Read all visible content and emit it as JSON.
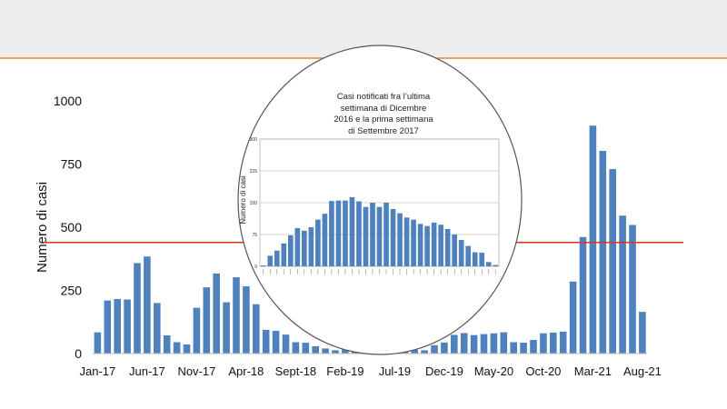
{
  "colors": {
    "bar": "#4f81bd",
    "threshold": "#e0301e",
    "accent": "#f0a060",
    "band": "#eeeeee"
  },
  "chart_data": [
    {
      "type": "bar",
      "ylabel": "Numero di casi",
      "xlabel": "",
      "ylim": [
        0,
        1000
      ],
      "y_ticks": [
        "0",
        "250",
        "500",
        "750",
        "1000"
      ],
      "x_tick_labels": [
        {
          "index": 0,
          "label": "Jan-17"
        },
        {
          "index": 5,
          "label": "Jun-17"
        },
        {
          "index": 10,
          "label": "Nov-17"
        },
        {
          "index": 15,
          "label": "Apr-18"
        },
        {
          "index": 20,
          "label": "Sept-18"
        },
        {
          "index": 25,
          "label": "Feb-19"
        },
        {
          "index": 30,
          "label": "Jul-19"
        },
        {
          "index": 35,
          "label": "Dec-19"
        },
        {
          "index": 40,
          "label": "May-20"
        },
        {
          "index": 45,
          "label": "Oct-20"
        },
        {
          "index": 50,
          "label": "Mar-21"
        },
        {
          "index": 55,
          "label": "Aug-21"
        }
      ],
      "values": [
        84,
        210,
        216,
        214,
        358,
        384,
        200,
        72,
        45,
        36,
        181,
        262,
        317,
        203,
        302,
        266,
        195,
        94,
        90,
        75,
        45,
        43,
        29,
        20,
        13,
        16,
        16,
        31,
        31,
        12,
        17,
        15,
        15,
        13,
        33,
        44,
        74,
        81,
        73,
        77,
        80,
        84,
        45,
        43,
        54,
        80,
        83,
        87,
        285,
        461,
        902,
        802,
        730,
        546,
        509,
        165
      ],
      "threshold": 440,
      "grid": false
    },
    {
      "type": "bar",
      "title": "Casi notificati fra l’ultima\nsettimana di Dicembre\n2016 e la prima settimana\ndi Settembre 2017",
      "ylabel": "Numero di casi",
      "ylim": [
        0,
        300
      ],
      "y_ticks": [
        "0",
        "75",
        "150",
        "225",
        "300"
      ],
      "values": [
        2,
        25,
        37,
        54,
        73,
        90,
        84,
        92,
        110,
        124,
        154,
        155,
        155,
        163,
        153,
        140,
        150,
        140,
        150,
        135,
        125,
        115,
        110,
        100,
        95,
        103,
        98,
        88,
        75,
        62,
        48,
        33,
        32,
        10,
        3
      ],
      "grid": true
    }
  ]
}
